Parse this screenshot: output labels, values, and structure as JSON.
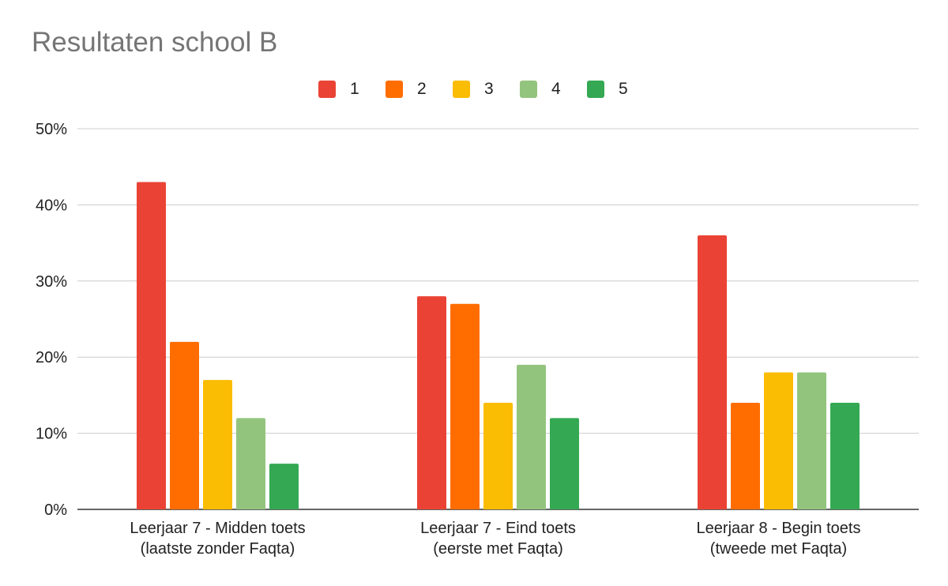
{
  "chart_data": {
    "type": "bar",
    "title": "Resultaten school B",
    "xlabel": "",
    "ylabel": "",
    "ylim": [
      0,
      50
    ],
    "yticks": [
      0,
      10,
      20,
      30,
      40,
      50
    ],
    "ytick_labels": [
      "0%",
      "10%",
      "20%",
      "30%",
      "40%",
      "50%"
    ],
    "grid": true,
    "legend_position": "top",
    "categories": [
      [
        "Leerjaar 7 - Midden toets",
        "(laatste zonder Faqta)"
      ],
      [
        "Leerjaar 7 - Eind toets",
        "(eerste met Faqta)"
      ],
      [
        "Leerjaar 8 - Begin toets",
        "(tweede met Faqta)"
      ]
    ],
    "series": [
      {
        "name": "1",
        "color": "#ea4335",
        "values": [
          43,
          28,
          36
        ]
      },
      {
        "name": "2",
        "color": "#ff6d01",
        "values": [
          22,
          27,
          14
        ]
      },
      {
        "name": "3",
        "color": "#fbbc04",
        "values": [
          17,
          14,
          18
        ]
      },
      {
        "name": "4",
        "color": "#93c47d",
        "values": [
          12,
          19,
          18
        ]
      },
      {
        "name": "5",
        "color": "#34a853",
        "values": [
          6,
          12,
          14
        ]
      }
    ]
  }
}
